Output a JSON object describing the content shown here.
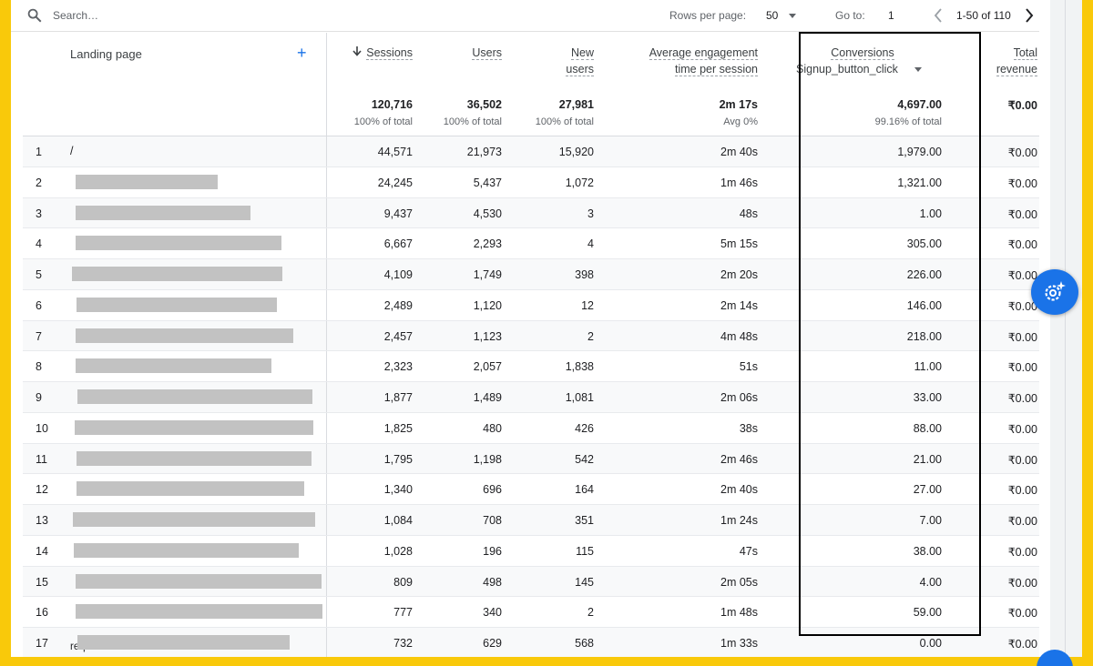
{
  "toolbar": {
    "search_placeholder": "Search…",
    "rows_per_page_label": "Rows per page:",
    "rows_per_page_value": "50",
    "goto_label": "Go to:",
    "goto_value": "1",
    "page_range": "1-50 of 110"
  },
  "header": {
    "landing_page": "Landing page",
    "sessions": "Sessions",
    "users": "Users",
    "new_users_line1": "New",
    "new_users_line2": "users",
    "aet_line1": "Average engagement",
    "aet_line2": "time per session",
    "conversions": "Conversions",
    "conversions_event": "Signup_button_click",
    "revenue_line1": "Total",
    "revenue_line2": "revenue"
  },
  "totals": {
    "sessions": "120,716",
    "sessions_sub": "100% of total",
    "users": "36,502",
    "users_sub": "100% of total",
    "new_users": "27,981",
    "new_users_sub": "100% of total",
    "aet": "2m 17s",
    "aet_sub": "Avg 0%",
    "conversions": "4,697.00",
    "conversions_sub": "99.16% of total",
    "revenue": "₹0.00"
  },
  "rows": [
    {
      "idx": "1",
      "path": "/",
      "sessions": "44,571",
      "users": "21,973",
      "new_users": "15,920",
      "aet": "2m 40s",
      "conv": "1,979.00",
      "rev": "₹0.00"
    },
    {
      "idx": "2",
      "path": "",
      "sessions": "24,245",
      "users": "5,437",
      "new_users": "1,072",
      "aet": "1m 46s",
      "conv": "1,321.00",
      "rev": "₹0.00"
    },
    {
      "idx": "3",
      "path": "",
      "sessions": "9,437",
      "users": "4,530",
      "new_users": "3",
      "aet": "48s",
      "conv": "1.00",
      "rev": "₹0.00"
    },
    {
      "idx": "4",
      "path": "",
      "sessions": "6,667",
      "users": "2,293",
      "new_users": "4",
      "aet": "5m 15s",
      "conv": "305.00",
      "rev": "₹0.00"
    },
    {
      "idx": "5",
      "path": "",
      "sessions": "4,109",
      "users": "1,749",
      "new_users": "398",
      "aet": "2m 20s",
      "conv": "226.00",
      "rev": "₹0.00"
    },
    {
      "idx": "6",
      "path": "",
      "sessions": "2,489",
      "users": "1,120",
      "new_users": "12",
      "aet": "2m 14s",
      "conv": "146.00",
      "rev": "₹0.00"
    },
    {
      "idx": "7",
      "path": "",
      "sessions": "2,457",
      "users": "1,123",
      "new_users": "2",
      "aet": "4m 48s",
      "conv": "218.00",
      "rev": "₹0.00"
    },
    {
      "idx": "8",
      "path": "",
      "sessions": "2,323",
      "users": "2,057",
      "new_users": "1,838",
      "aet": "51s",
      "conv": "11.00",
      "rev": "₹0.00"
    },
    {
      "idx": "9",
      "path": "",
      "sessions": "1,877",
      "users": "1,489",
      "new_users": "1,081",
      "aet": "2m 06s",
      "conv": "33.00",
      "rev": "₹0.00"
    },
    {
      "idx": "10",
      "path": "",
      "sessions": "1,825",
      "users": "480",
      "new_users": "426",
      "aet": "38s",
      "conv": "88.00",
      "rev": "₹0.00"
    },
    {
      "idx": "11",
      "path": "",
      "sessions": "1,795",
      "users": "1,198",
      "new_users": "542",
      "aet": "2m 46s",
      "conv": "21.00",
      "rev": "₹0.00"
    },
    {
      "idx": "12",
      "path": "",
      "sessions": "1,340",
      "users": "696",
      "new_users": "164",
      "aet": "2m 40s",
      "conv": "27.00",
      "rev": "₹0.00"
    },
    {
      "idx": "13",
      "path": "",
      "sessions": "1,084",
      "users": "708",
      "new_users": "351",
      "aet": "1m 24s",
      "conv": "7.00",
      "rev": "₹0.00"
    },
    {
      "idx": "14",
      "path": "",
      "sessions": "1,028",
      "users": "196",
      "new_users": "115",
      "aet": "47s",
      "conv": "38.00",
      "rev": "₹0.00"
    },
    {
      "idx": "15",
      "path": "",
      "sessions": "809",
      "users": "498",
      "new_users": "145",
      "aet": "2m 05s",
      "conv": "4.00",
      "rev": "₹0.00"
    },
    {
      "idx": "16",
      "path": "",
      "sessions": "777",
      "users": "340",
      "new_users": "2",
      "aet": "1m 48s",
      "conv": "59.00",
      "rev": "₹0.00"
    },
    {
      "idx": "17",
      "path": "requirements-in-india",
      "sessions": "732",
      "users": "629",
      "new_users": "568",
      "aet": "1m 33s",
      "conv": "0.00",
      "rev": "₹0.00"
    }
  ],
  "colors": {
    "frame": "#f9c90a",
    "accent": "#1a73e8",
    "highlight_border": "#000000",
    "redaction": "#c2c2c2"
  },
  "icons": [
    "search-icon",
    "sort-down-arrow-icon",
    "add-icon",
    "dropdown-caret-icon",
    "chevron-left-icon",
    "chevron-right-icon",
    "settings-sparkle-icon"
  ]
}
